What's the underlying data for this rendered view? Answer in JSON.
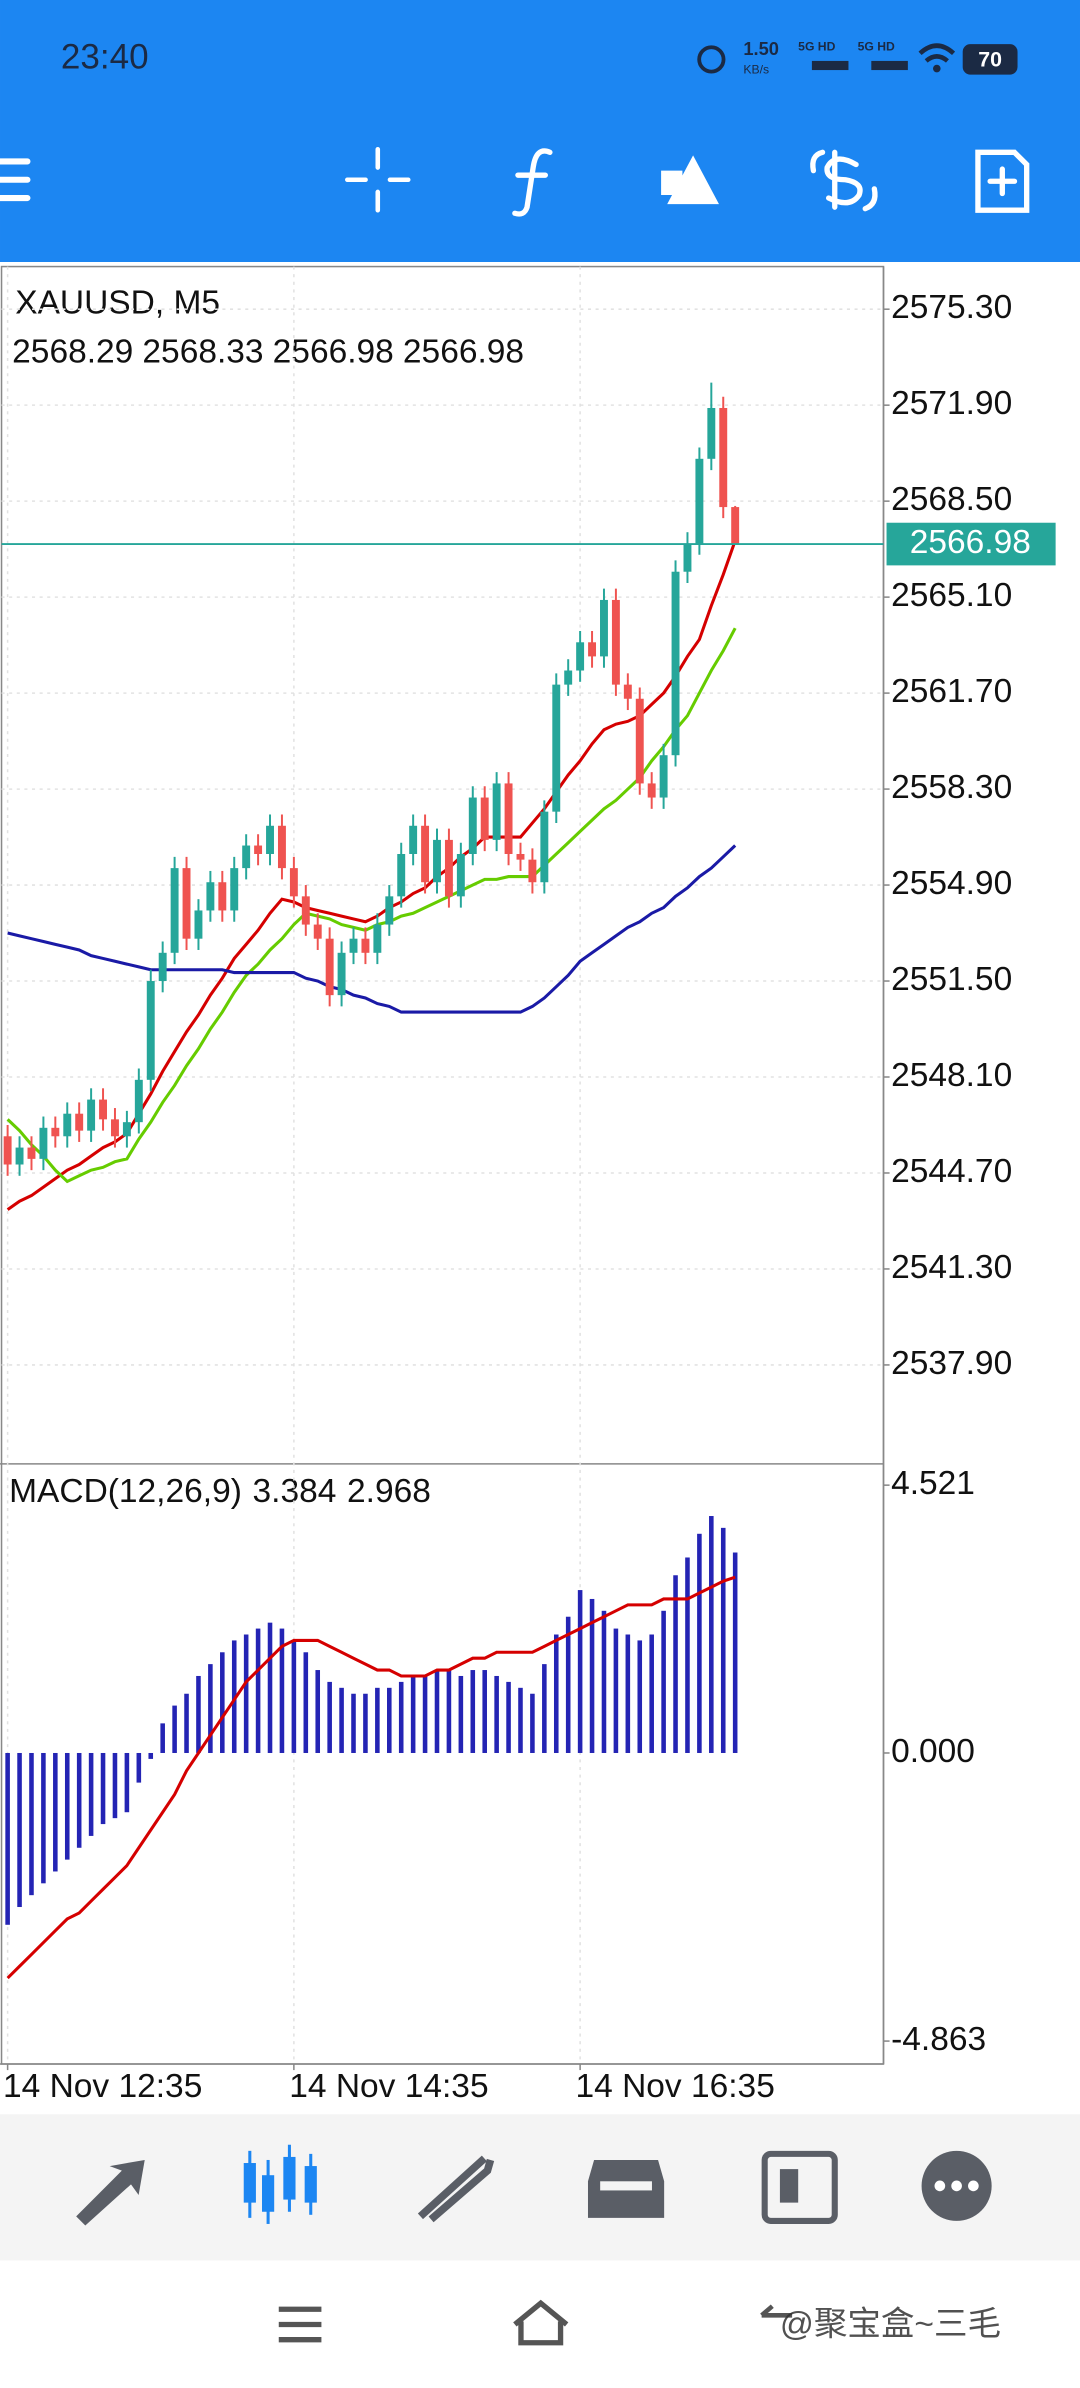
{
  "status_bar": {
    "time": "23:40",
    "speed": "1.50",
    "speed_unit": "KB/s",
    "network_1": "5G HD",
    "network_2": "5G HD",
    "battery": "70"
  },
  "chart_data": [
    {
      "type": "candlestick",
      "title": "XAUUSD, M5",
      "colors": {
        "up": "#26a69a",
        "down": "#ef5350"
      },
      "candles": [
        [
          2546.0,
          2546.4,
          2544.6,
          2545.0
        ],
        [
          2545.0,
          2546.0,
          2544.6,
          2545.6
        ],
        [
          2545.6,
          2546.0,
          2544.8,
          2545.2
        ],
        [
          2545.2,
          2546.7,
          2544.8,
          2546.3
        ],
        [
          2546.3,
          2546.7,
          2545.6,
          2546.0
        ],
        [
          2546.0,
          2547.2,
          2545.6,
          2546.8
        ],
        [
          2546.8,
          2547.2,
          2545.8,
          2546.2
        ],
        [
          2546.2,
          2547.7,
          2545.8,
          2547.3
        ],
        [
          2547.3,
          2547.7,
          2546.2,
          2546.6
        ],
        [
          2546.6,
          2547.0,
          2545.6,
          2546.0
        ],
        [
          2546.0,
          2546.9,
          2545.6,
          2546.5
        ],
        [
          2546.5,
          2548.4,
          2546.1,
          2548.0
        ],
        [
          2548.0,
          2551.9,
          2547.6,
          2551.5
        ],
        [
          2551.5,
          2552.9,
          2551.1,
          2552.5
        ],
        [
          2552.5,
          2555.9,
          2552.1,
          2555.5
        ],
        [
          2555.5,
          2555.9,
          2552.6,
          2553.0
        ],
        [
          2553.0,
          2554.4,
          2552.6,
          2554.0
        ],
        [
          2554.0,
          2555.4,
          2553.6,
          2555.0
        ],
        [
          2555.0,
          2555.4,
          2553.6,
          2554.0
        ],
        [
          2554.0,
          2555.9,
          2553.6,
          2555.5
        ],
        [
          2555.5,
          2556.7,
          2555.1,
          2556.3
        ],
        [
          2556.3,
          2556.7,
          2555.6,
          2556.0
        ],
        [
          2556.0,
          2557.4,
          2555.6,
          2557.0
        ],
        [
          2557.0,
          2557.4,
          2555.1,
          2555.5
        ],
        [
          2555.5,
          2555.9,
          2554.1,
          2554.5
        ],
        [
          2554.5,
          2554.9,
          2553.1,
          2553.5
        ],
        [
          2553.5,
          2553.9,
          2552.6,
          2553.0
        ],
        [
          2553.0,
          2553.4,
          2550.6,
          2551.0
        ],
        [
          2551.0,
          2552.9,
          2550.6,
          2552.5
        ],
        [
          2552.5,
          2553.4,
          2552.1,
          2553.0
        ],
        [
          2553.0,
          2553.4,
          2552.1,
          2552.5
        ],
        [
          2552.5,
          2553.9,
          2552.1,
          2553.5
        ],
        [
          2553.5,
          2554.9,
          2553.1,
          2554.5
        ],
        [
          2554.5,
          2556.4,
          2554.1,
          2556.0
        ],
        [
          2556.0,
          2557.4,
          2555.6,
          2557.0
        ],
        [
          2557.0,
          2557.4,
          2554.6,
          2555.0
        ],
        [
          2555.0,
          2556.9,
          2554.6,
          2556.5
        ],
        [
          2556.5,
          2556.9,
          2554.1,
          2554.5
        ],
        [
          2554.5,
          2556.4,
          2554.1,
          2556.0
        ],
        [
          2556.0,
          2558.4,
          2555.6,
          2558.0
        ],
        [
          2558.0,
          2558.4,
          2556.1,
          2556.5
        ],
        [
          2556.5,
          2558.9,
          2556.1,
          2558.5
        ],
        [
          2558.5,
          2558.9,
          2555.6,
          2556.0
        ],
        [
          2556.0,
          2556.4,
          2555.4,
          2555.8
        ],
        [
          2555.8,
          2556.2,
          2554.6,
          2555.0
        ],
        [
          2555.0,
          2557.9,
          2554.6,
          2557.5
        ],
        [
          2557.5,
          2562.4,
          2557.1,
          2562.0
        ],
        [
          2562.0,
          2562.9,
          2561.6,
          2562.5
        ],
        [
          2562.5,
          2563.9,
          2562.1,
          2563.5
        ],
        [
          2563.5,
          2563.9,
          2562.6,
          2563.0
        ],
        [
          2563.0,
          2565.4,
          2562.6,
          2565.0
        ],
        [
          2565.0,
          2565.4,
          2561.6,
          2562.0
        ],
        [
          2562.0,
          2562.4,
          2561.1,
          2561.5
        ],
        [
          2561.5,
          2561.9,
          2558.1,
          2558.5
        ],
        [
          2558.5,
          2558.9,
          2557.6,
          2558.0
        ],
        [
          2558.0,
          2559.9,
          2557.6,
          2559.5
        ],
        [
          2559.5,
          2566.4,
          2559.1,
          2566.0
        ],
        [
          2566.0,
          2567.4,
          2565.6,
          2567.0
        ],
        [
          2567.0,
          2570.4,
          2566.6,
          2570.0
        ],
        [
          2570.0,
          2572.7,
          2569.6,
          2571.8
        ],
        [
          2571.8,
          2572.2,
          2567.9,
          2568.29
        ],
        [
          2568.29,
          2568.33,
          2566.98,
          2566.98
        ]
      ],
      "series": [
        {
          "color": "#d50000",
          "values": [
            2543.4,
            2543.7,
            2543.9,
            2544.2,
            2544.5,
            2544.8,
            2545.0,
            2545.3,
            2545.6,
            2545.8,
            2546.1,
            2546.8,
            2547.5,
            2548.3,
            2549.0,
            2549.7,
            2550.3,
            2551.0,
            2551.6,
            2552.3,
            2552.8,
            2553.3,
            2553.9,
            2554.4,
            2554.3,
            2554.1,
            2554.0,
            2553.9,
            2553.8,
            2553.7,
            2553.6,
            2553.8,
            2554.1,
            2554.3,
            2554.6,
            2554.8,
            2555.2,
            2555.5,
            2555.9,
            2556.2,
            2556.6,
            2556.6,
            2556.6,
            2556.6,
            2557.1,
            2557.6,
            2558.2,
            2558.8,
            2559.3,
            2559.9,
            2560.4,
            2560.6,
            2560.7,
            2560.9,
            2561.3,
            2561.7,
            2562.3,
            2563.0,
            2563.6,
            2564.8,
            2565.9,
            2567.1
          ]
        },
        {
          "color": "#66cc00",
          "values": [
            2546.6,
            2546.2,
            2545.7,
            2545.3,
            2544.8,
            2544.4,
            2544.6,
            2544.8,
            2544.9,
            2545.1,
            2545.2,
            2545.9,
            2546.5,
            2547.2,
            2547.8,
            2548.5,
            2549.1,
            2549.8,
            2550.4,
            2551.1,
            2551.7,
            2552.1,
            2552.6,
            2553.0,
            2553.5,
            2553.9,
            2553.8,
            2553.7,
            2553.5,
            2553.4,
            2553.3,
            2553.5,
            2553.6,
            2553.8,
            2553.9,
            2554.1,
            2554.3,
            2554.5,
            2554.7,
            2554.9,
            2555.1,
            2555.1,
            2555.2,
            2555.2,
            2555.2,
            2555.6,
            2556.0,
            2556.4,
            2556.8,
            2557.2,
            2557.6,
            2557.9,
            2558.3,
            2558.7,
            2559.3,
            2559.8,
            2560.4,
            2560.9,
            2561.7,
            2562.5,
            2563.2,
            2564.0
          ]
        },
        {
          "color": "#1a1aa6",
          "values": [
            2553.2,
            2553.1,
            2553.0,
            2552.9,
            2552.8,
            2552.7,
            2552.6,
            2552.4,
            2552.3,
            2552.2,
            2552.1,
            2552.0,
            2551.9,
            2551.9,
            2551.9,
            2551.9,
            2551.9,
            2551.9,
            2551.9,
            2551.8,
            2551.8,
            2551.8,
            2551.8,
            2551.8,
            2551.8,
            2551.6,
            2551.5,
            2551.3,
            2551.2,
            2551.0,
            2550.9,
            2550.7,
            2550.6,
            2550.4,
            2550.4,
            2550.4,
            2550.4,
            2550.4,
            2550.4,
            2550.4,
            2550.4,
            2550.4,
            2550.4,
            2550.4,
            2550.6,
            2550.9,
            2551.3,
            2551.7,
            2552.2,
            2552.5,
            2552.8,
            2553.1,
            2553.4,
            2553.6,
            2553.9,
            2554.1,
            2554.5,
            2554.8,
            2555.2,
            2555.5,
            2555.9,
            2556.3
          ]
        }
      ],
      "ylim": [
        2534.45,
        2576.81
      ],
      "yticks": [
        {
          "value": 2575.3,
          "label": "2575.30"
        },
        {
          "value": 2571.9,
          "label": "2571.90"
        },
        {
          "value": 2568.5,
          "label": "2568.50"
        },
        {
          "value": 2565.1,
          "label": "2565.10"
        },
        {
          "value": 2561.7,
          "label": "2561.70"
        },
        {
          "value": 2558.3,
          "label": "2558.30"
        },
        {
          "value": 2554.9,
          "label": "2554.90"
        },
        {
          "value": 2551.5,
          "label": "2551.50"
        },
        {
          "value": 2548.1,
          "label": "2548.10"
        },
        {
          "value": 2544.7,
          "label": "2544.70"
        },
        {
          "value": 2541.3,
          "label": "2541.30"
        },
        {
          "value": 2537.9,
          "label": "2537.90"
        }
      ],
      "xticks": [
        {
          "value": 0,
          "label": "14 Nov 12:35"
        },
        {
          "value": 24,
          "label": "14 Nov 14:35"
        },
        {
          "value": 48,
          "label": "14 Nov 16:35"
        }
      ],
      "grid": true
    },
    {
      "type": "macd",
      "title": "MACD(12,26,9)",
      "histogram": {
        "color": "#2424b4",
        "values": [
          -2.9,
          -2.6,
          -2.4,
          -2.2,
          -2.0,
          -1.8,
          -1.6,
          -1.4,
          -1.2,
          -1.1,
          -1.0,
          -0.5,
          -0.1,
          0.5,
          0.8,
          1.0,
          1.3,
          1.5,
          1.7,
          1.9,
          2.0,
          2.1,
          2.2,
          2.1,
          1.9,
          1.7,
          1.4,
          1.2,
          1.1,
          1.0,
          1.0,
          1.1,
          1.1,
          1.2,
          1.3,
          1.3,
          1.4,
          1.4,
          1.3,
          1.4,
          1.4,
          1.3,
          1.2,
          1.1,
          1.0,
          1.5,
          2.0,
          2.3,
          2.75,
          2.6,
          2.4,
          2.1,
          2.0,
          1.9,
          2.0,
          2.4,
          3.0,
          3.3,
          3.7,
          4.0,
          3.8,
          3.384
        ]
      },
      "signal": {
        "color": "#d50000",
        "values": [
          -3.8,
          -3.6,
          -3.4,
          -3.2,
          -3.0,
          -2.8,
          -2.7,
          -2.5,
          -2.3,
          -2.1,
          -1.9,
          -1.6,
          -1.3,
          -1.0,
          -0.7,
          -0.3,
          0.0,
          0.3,
          0.6,
          0.9,
          1.2,
          1.4,
          1.6,
          1.8,
          1.9,
          1.9,
          1.9,
          1.8,
          1.7,
          1.6,
          1.5,
          1.4,
          1.4,
          1.3,
          1.3,
          1.3,
          1.4,
          1.4,
          1.5,
          1.6,
          1.6,
          1.7,
          1.7,
          1.7,
          1.7,
          1.8,
          1.9,
          2.0,
          2.1,
          2.2,
          2.3,
          2.4,
          2.5,
          2.5,
          2.5,
          2.6,
          2.6,
          2.6,
          2.7,
          2.8,
          2.9,
          2.968
        ]
      },
      "ylim": [
        -5.25,
        4.855
      ],
      "yticks": [
        4.521,
        {
          "value": 0,
          "label": "0.000"
        },
        -4.863
      ]
    }
  ],
  "watermark": "@聚宝盒~三毛"
}
